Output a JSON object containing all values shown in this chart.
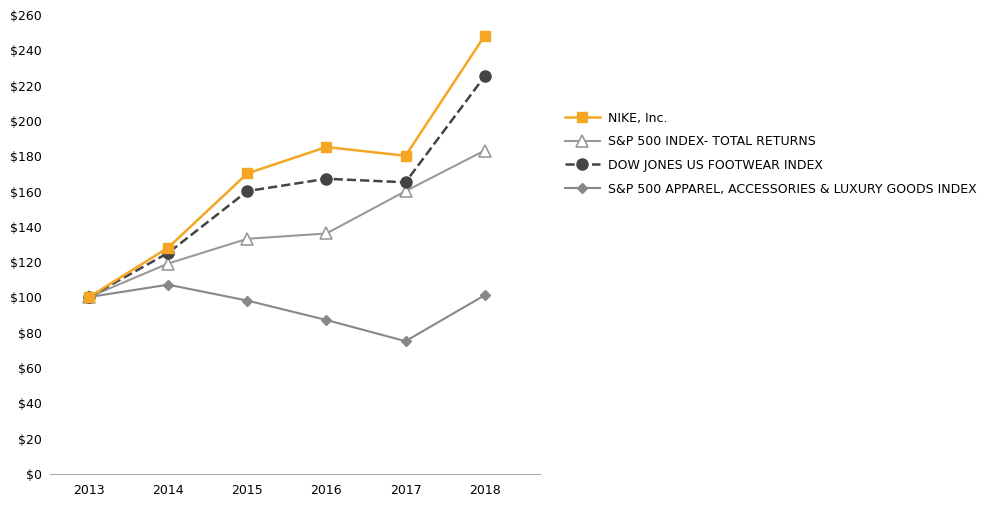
{
  "years": [
    2013,
    2014,
    2015,
    2016,
    2017,
    2018
  ],
  "nike": [
    100,
    128,
    170,
    185,
    180,
    248
  ],
  "sp500": [
    100,
    119,
    133,
    136,
    160,
    183
  ],
  "dowjones": [
    100,
    125,
    160,
    167,
    165,
    225
  ],
  "sp500_apparel": [
    100,
    107,
    98,
    87,
    75,
    101
  ],
  "nike_color": "#F5A623",
  "sp500_color": "#999999",
  "dowjones_color": "#444444",
  "sp500_apparel_color": "#888888",
  "ylim": [
    0,
    260
  ],
  "yticks": [
    0,
    20,
    40,
    60,
    80,
    100,
    120,
    140,
    160,
    180,
    200,
    220,
    240,
    260
  ],
  "legend_nike": "NIKE, Inc.",
  "legend_sp500": "S&P 500 INDEX- TOTAL RETURNS",
  "legend_dowjones": "DOW JONES US FOOTWEAR INDEX",
  "legend_apparel": "S&P 500 APPAREL, ACCESSORIES & LUXURY GOODS INDEX",
  "bg_color": "#ffffff",
  "font_size": 9
}
